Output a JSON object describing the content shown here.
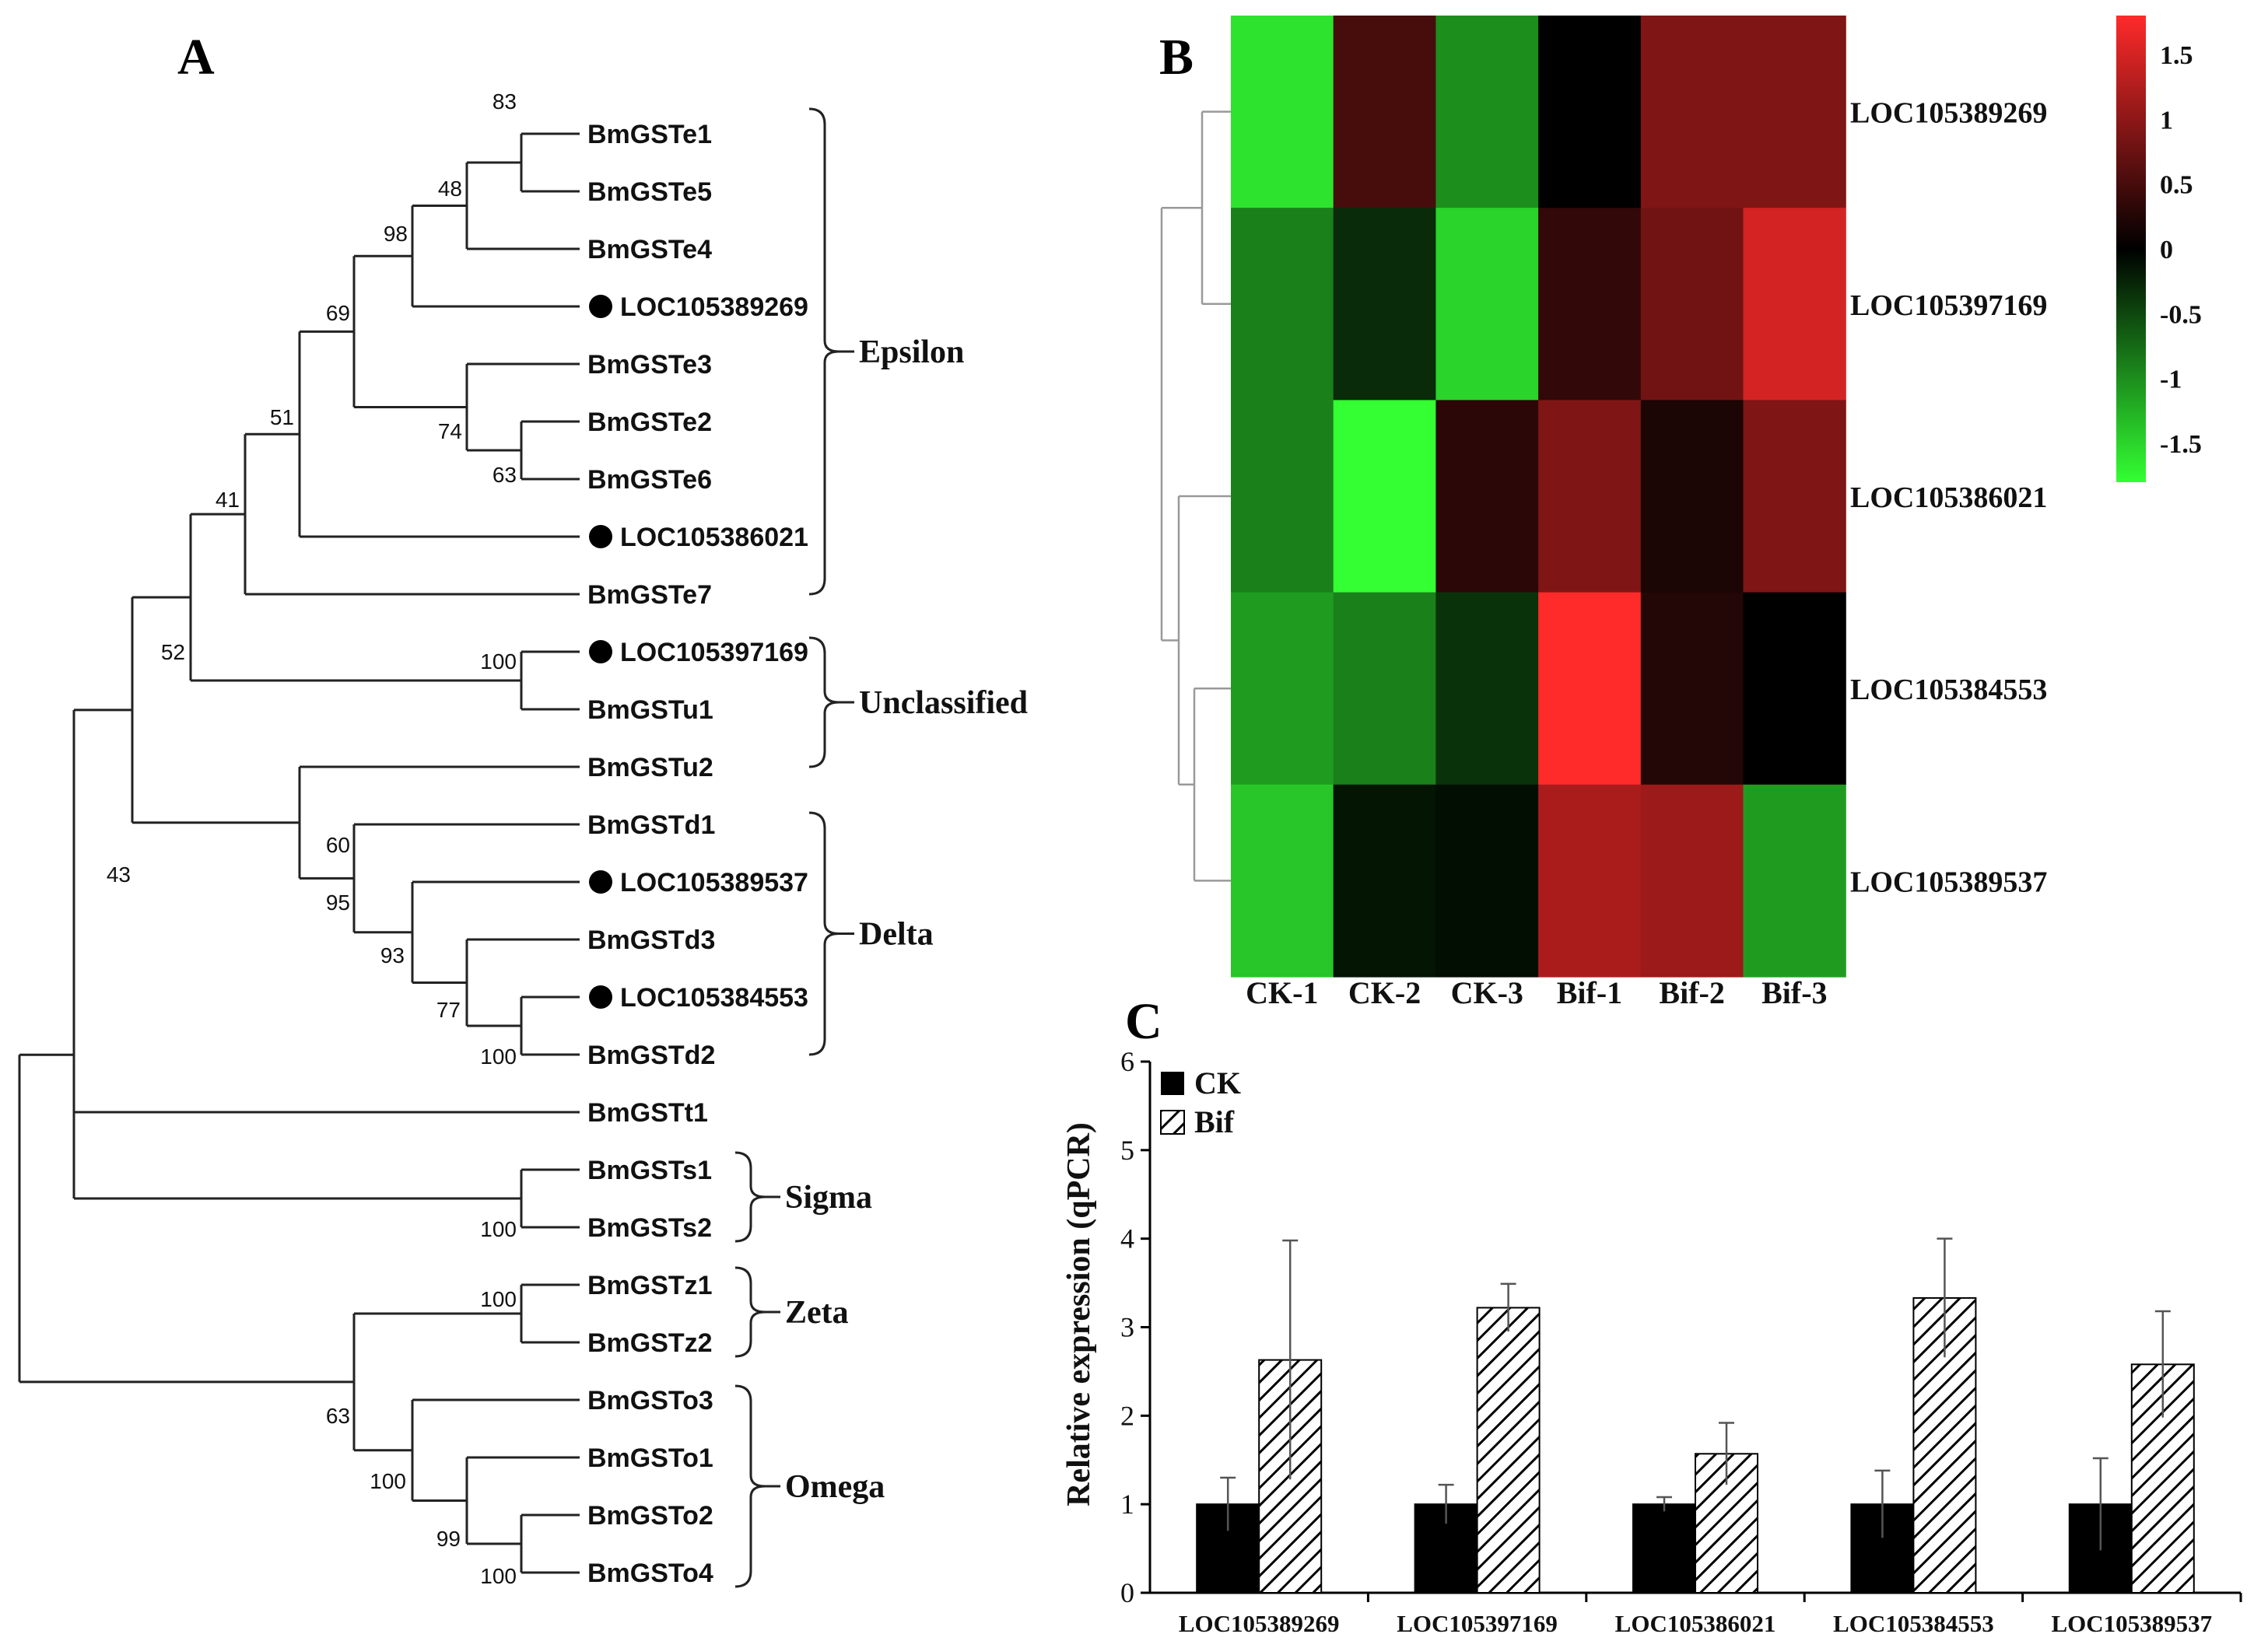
{
  "panels": {
    "a": "A",
    "b": "B",
    "c": "C"
  },
  "tree": {
    "tips": [
      "BmGSTe1",
      "BmGSTe5",
      "BmGSTe4",
      "LOC105389269",
      "BmGSTe3",
      "BmGSTe2",
      "BmGSTe6",
      "LOC105386021",
      "BmGSTe7",
      "LOC105397169",
      "BmGSTu1",
      "BmGSTu2",
      "BmGSTd1",
      "LOC105389537",
      "BmGSTd3",
      "LOC105384553",
      "BmGSTd2",
      "BmGSTt1",
      "BmGSTs1",
      "BmGSTs2",
      "BmGSTz1",
      "BmGSTz2",
      "BmGSTo3",
      "BmGSTo1",
      "BmGSTo2",
      "BmGSTo4"
    ],
    "marked": [
      "LOC105389269",
      "LOC105386021",
      "LOC105397169",
      "LOC105389537",
      "LOC105384553"
    ],
    "bootstrap": [
      "83",
      "48",
      "98",
      "69",
      "74",
      "63",
      "51",
      "41",
      "52",
      "100",
      "60",
      "95",
      "93",
      "77",
      "100",
      "43",
      "100",
      "100",
      "63",
      "100",
      "99",
      "100"
    ],
    "clades": [
      "Epsilon",
      "Unclassified",
      "Delta",
      "Sigma",
      "Zeta",
      "Omega"
    ]
  },
  "chart_data": [
    {
      "type": "heatmap",
      "title": "",
      "columns": [
        "CK-1",
        "CK-2",
        "CK-3",
        "Bif-1",
        "Bif-2",
        "Bif-3"
      ],
      "rows": [
        "LOC105389269",
        "LOC105397169",
        "LOC105386021",
        "LOC105384553",
        "LOC105389537"
      ],
      "values": [
        [
          -1.6,
          0.5,
          -1.0,
          0.0,
          0.9,
          0.9
        ],
        [
          -0.9,
          -0.3,
          -1.5,
          0.35,
          0.8,
          1.5
        ],
        [
          -0.9,
          -1.9,
          0.3,
          0.9,
          0.2,
          0.9
        ],
        [
          -1.1,
          -0.9,
          -0.35,
          1.8,
          0.25,
          0.0
        ],
        [
          -1.4,
          -0.15,
          -0.1,
          1.2,
          1.1,
          -1.1
        ]
      ],
      "color_scale": {
        "min": -1.8,
        "max": 1.8,
        "low": "#33ff33",
        "mid": "#000000",
        "high": "#ff2a2a",
        "ticks": [
          "1.5",
          "1",
          "0.5",
          "0",
          "-0.5",
          "-1",
          "-1.5"
        ]
      },
      "dendrogram": "rows"
    },
    {
      "type": "bar",
      "title": "",
      "categories": [
        "LOC105389269",
        "LOC105397169",
        "LOC105386021",
        "LOC105384553",
        "LOC105389537"
      ],
      "series": [
        {
          "name": "CK",
          "values": [
            1.0,
            1.0,
            1.0,
            1.0,
            1.0
          ],
          "errors": [
            0.3,
            0.22,
            0.08,
            0.38,
            0.52
          ],
          "color": "#000000"
        },
        {
          "name": "Bif",
          "values": [
            2.63,
            3.22,
            1.57,
            3.33,
            2.58
          ],
          "errors": [
            1.35,
            0.27,
            0.35,
            0.67,
            0.6
          ],
          "color": "hatched"
        }
      ],
      "xlabel": "",
      "ylabel": "Relative expression (qPCR)",
      "ylim": [
        0,
        6
      ],
      "yticks": [
        "0",
        "1",
        "2",
        "3",
        "4",
        "5",
        "6"
      ],
      "legend": "top-left"
    }
  ]
}
